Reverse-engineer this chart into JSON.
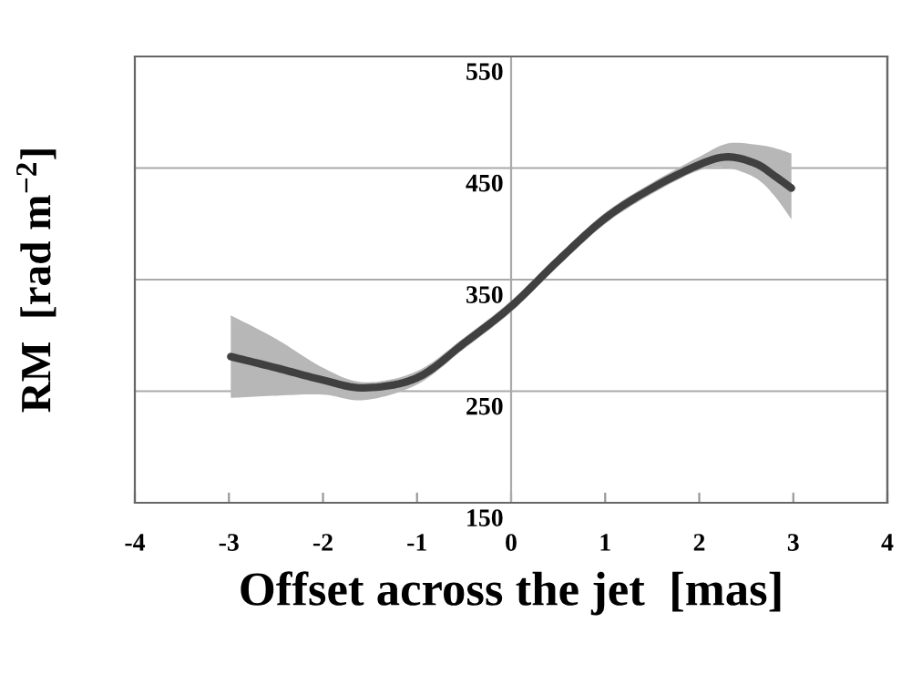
{
  "chart_data": {
    "type": "line",
    "xlabel": "Offset across the jet  [mas]",
    "ylabel": "RM  [rad m$^{−2}$]",
    "xlim": [
      -4,
      4
    ],
    "xticks": [
      -4,
      -3,
      -2,
      -1,
      0,
      1,
      2,
      3,
      4
    ],
    "ylim": [
      150,
      550
    ],
    "yticks": [
      150,
      250,
      350,
      450,
      550
    ],
    "grid": "y",
    "marker": "none",
    "line_style": "solid",
    "series": [
      {
        "color": "#404040",
        "x": [
          -2.98,
          -2.5,
          -2,
          -1.56,
          -1,
          -0.5,
          0,
          0.5,
          1,
          1.5,
          2,
          2.3,
          2.6,
          2.8,
          2.98
        ],
        "values": [
          281,
          271,
          260,
          253,
          262,
          293,
          326,
          367,
          405,
          432,
          453,
          460,
          454,
          443,
          432
        ],
        "lower": [
          244,
          246,
          247,
          242,
          256,
          288,
          321,
          362,
          400,
          427,
          448,
          450,
          441,
          425,
          404
        ],
        "upper": [
          318,
          297,
          271,
          258,
          268,
          298,
          331,
          372,
          410,
          437,
          460,
          472,
          471,
          468,
          463
        ]
      }
    ]
  }
}
